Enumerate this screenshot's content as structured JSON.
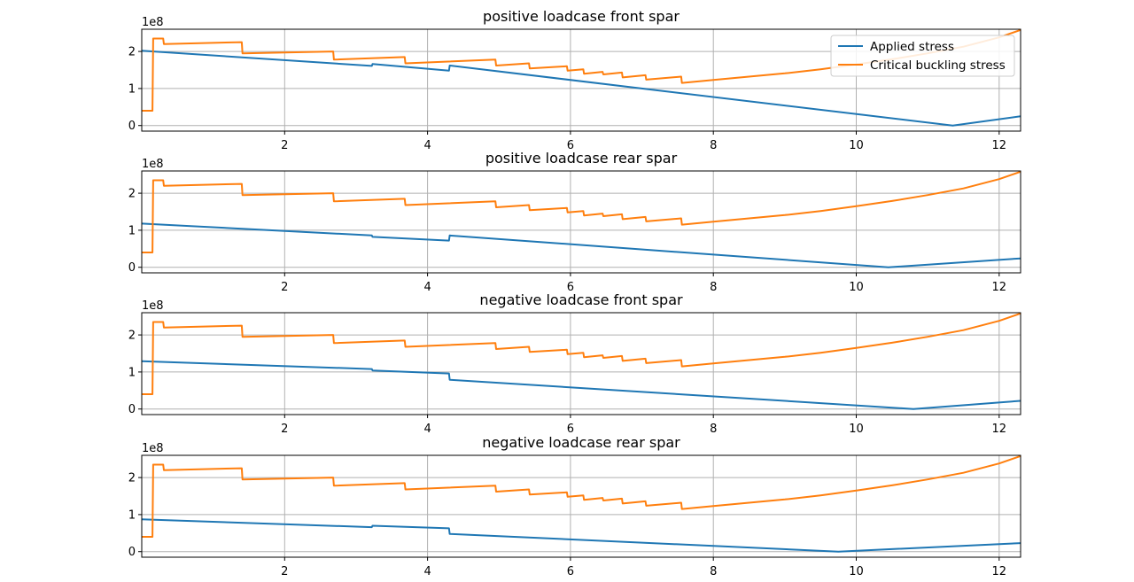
{
  "colors": {
    "applied": "#1f77b4",
    "critical": "#ff7f0e",
    "grid": "#b0b0b0"
  },
  "chart_data": [
    {
      "type": "line",
      "title": "positive loadcase front spar",
      "scale_label": "1e8",
      "xlim": [
        0.0,
        12.3
      ],
      "ylim": [
        -0.15,
        2.6
      ],
      "xticks": [
        2,
        4,
        6,
        8,
        10,
        12
      ],
      "yticks": [
        0,
        1,
        2
      ],
      "grid": true,
      "legend": {
        "placement": "top-right",
        "entries": [
          "Applied stress",
          "Critical buckling stress"
        ]
      },
      "series": [
        {
          "name": "Applied stress",
          "color_key": "applied",
          "x": [
            0.0,
            3.22,
            3.23,
            4.3,
            4.31,
            11.35,
            12.3
          ],
          "y": [
            2.02,
            1.61,
            1.66,
            1.48,
            1.62,
            0.0,
            0.25
          ]
        },
        {
          "name": "Critical buckling stress",
          "color_key": "critical",
          "x": [
            0.0,
            0.15,
            0.16,
            0.3,
            0.31,
            1.4,
            1.41,
            2.68,
            2.69,
            3.68,
            3.69,
            4.95,
            4.96,
            5.42,
            5.43,
            5.95,
            5.96,
            6.18,
            6.19,
            6.45,
            6.46,
            6.72,
            6.73,
            7.05,
            7.06,
            7.55,
            7.56,
            8.0,
            8.5,
            9.0,
            9.5,
            10.0,
            10.5,
            11.0,
            11.5,
            12.0,
            12.3
          ],
          "y": [
            0.4,
            0.4,
            2.35,
            2.35,
            2.2,
            2.25,
            1.95,
            2.0,
            1.78,
            1.85,
            1.68,
            1.78,
            1.62,
            1.68,
            1.54,
            1.6,
            1.48,
            1.52,
            1.4,
            1.45,
            1.38,
            1.43,
            1.3,
            1.36,
            1.24,
            1.32,
            1.15,
            1.23,
            1.32,
            1.41,
            1.52,
            1.65,
            1.79,
            1.95,
            2.13,
            2.38,
            2.58
          ]
        }
      ]
    },
    {
      "type": "line",
      "title": "positive loadcase rear spar",
      "scale_label": "1e8",
      "xlim": [
        0.0,
        12.3
      ],
      "ylim": [
        -0.15,
        2.6
      ],
      "xticks": [
        2,
        4,
        6,
        8,
        10,
        12
      ],
      "yticks": [
        0,
        1,
        2
      ],
      "grid": true,
      "series": [
        {
          "name": "Applied stress",
          "color_key": "applied",
          "x": [
            0.0,
            3.22,
            3.23,
            4.3,
            4.31,
            10.45,
            12.3
          ],
          "y": [
            1.18,
            0.86,
            0.82,
            0.72,
            0.86,
            0.0,
            0.24
          ]
        },
        {
          "name": "Critical buckling stress",
          "color_key": "critical",
          "x": [
            0.0,
            0.15,
            0.16,
            0.3,
            0.31,
            1.4,
            1.41,
            2.68,
            2.69,
            3.68,
            3.69,
            4.95,
            4.96,
            5.42,
            5.43,
            5.95,
            5.96,
            6.18,
            6.19,
            6.45,
            6.46,
            6.72,
            6.73,
            7.05,
            7.06,
            7.55,
            7.56,
            8.0,
            8.5,
            9.0,
            9.5,
            10.0,
            10.5,
            11.0,
            11.5,
            12.0,
            12.3
          ],
          "y": [
            0.4,
            0.4,
            2.35,
            2.35,
            2.2,
            2.25,
            1.95,
            2.0,
            1.78,
            1.85,
            1.68,
            1.78,
            1.62,
            1.68,
            1.54,
            1.6,
            1.48,
            1.52,
            1.4,
            1.45,
            1.38,
            1.43,
            1.3,
            1.36,
            1.24,
            1.32,
            1.15,
            1.23,
            1.32,
            1.41,
            1.52,
            1.65,
            1.79,
            1.95,
            2.13,
            2.38,
            2.58
          ]
        }
      ]
    },
    {
      "type": "line",
      "title": "negative loadcase front spar",
      "scale_label": "1e8",
      "xlim": [
        0.0,
        12.3
      ],
      "ylim": [
        -0.15,
        2.6
      ],
      "xticks": [
        2,
        4,
        6,
        8,
        10,
        12
      ],
      "yticks": [
        0,
        1,
        2
      ],
      "grid": true,
      "series": [
        {
          "name": "Applied stress",
          "color_key": "applied",
          "x": [
            0.0,
            3.22,
            3.23,
            4.3,
            4.31,
            10.8,
            12.3
          ],
          "y": [
            1.29,
            1.08,
            1.04,
            0.96,
            0.79,
            0.0,
            0.22
          ]
        },
        {
          "name": "Critical buckling stress",
          "color_key": "critical",
          "x": [
            0.0,
            0.15,
            0.16,
            0.3,
            0.31,
            1.4,
            1.41,
            2.68,
            2.69,
            3.68,
            3.69,
            4.95,
            4.96,
            5.42,
            5.43,
            5.95,
            5.96,
            6.18,
            6.19,
            6.45,
            6.46,
            6.72,
            6.73,
            7.05,
            7.06,
            7.55,
            7.56,
            8.0,
            8.5,
            9.0,
            9.5,
            10.0,
            10.5,
            11.0,
            11.5,
            12.0,
            12.3
          ],
          "y": [
            0.4,
            0.4,
            2.35,
            2.35,
            2.2,
            2.25,
            1.95,
            2.0,
            1.78,
            1.85,
            1.68,
            1.78,
            1.62,
            1.68,
            1.54,
            1.6,
            1.48,
            1.52,
            1.4,
            1.45,
            1.38,
            1.43,
            1.3,
            1.36,
            1.24,
            1.32,
            1.15,
            1.23,
            1.32,
            1.41,
            1.52,
            1.65,
            1.79,
            1.95,
            2.13,
            2.38,
            2.58
          ]
        }
      ]
    },
    {
      "type": "line",
      "title": "negative loadcase rear spar",
      "scale_label": "1e8",
      "xlim": [
        0.0,
        12.3
      ],
      "ylim": [
        -0.15,
        2.6
      ],
      "xticks": [
        2,
        4,
        6,
        8,
        10,
        12
      ],
      "yticks": [
        0,
        1,
        2
      ],
      "grid": true,
      "series": [
        {
          "name": "Applied stress",
          "color_key": "applied",
          "x": [
            0.0,
            3.22,
            3.23,
            4.3,
            4.31,
            9.75,
            12.3
          ],
          "y": [
            0.87,
            0.66,
            0.7,
            0.63,
            0.48,
            0.0,
            0.23
          ]
        },
        {
          "name": "Critical buckling stress",
          "color_key": "critical",
          "x": [
            0.0,
            0.15,
            0.16,
            0.3,
            0.31,
            1.4,
            1.41,
            2.68,
            2.69,
            3.68,
            3.69,
            4.95,
            4.96,
            5.42,
            5.43,
            5.95,
            5.96,
            6.18,
            6.19,
            6.45,
            6.46,
            6.72,
            6.73,
            7.05,
            7.06,
            7.55,
            7.56,
            8.0,
            8.5,
            9.0,
            9.5,
            10.0,
            10.5,
            11.0,
            11.5,
            12.0,
            12.3
          ],
          "y": [
            0.4,
            0.4,
            2.35,
            2.35,
            2.2,
            2.25,
            1.95,
            2.0,
            1.78,
            1.85,
            1.68,
            1.78,
            1.62,
            1.68,
            1.54,
            1.6,
            1.48,
            1.52,
            1.4,
            1.45,
            1.38,
            1.43,
            1.3,
            1.36,
            1.24,
            1.32,
            1.15,
            1.23,
            1.32,
            1.41,
            1.52,
            1.65,
            1.79,
            1.95,
            2.13,
            2.38,
            2.58
          ]
        }
      ]
    }
  ]
}
